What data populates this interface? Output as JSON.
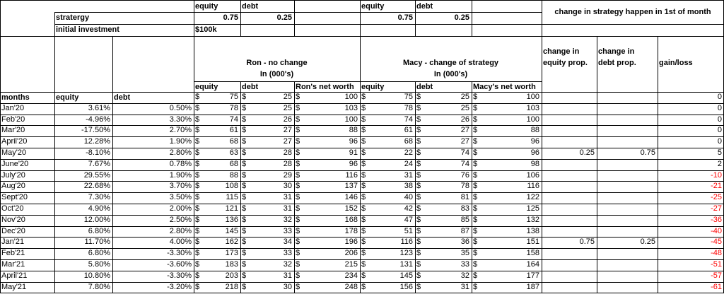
{
  "alloc_headers": {
    "ron_equity": "equity",
    "ron_debt": "debt",
    "macy_equity": "equity",
    "macy_debt": "debt"
  },
  "change_note": "change in strategy happen in 1st of month",
  "strategy": {
    "label": "stratergy",
    "ron_equity": "0.75",
    "ron_debt": "0.25",
    "macy_equity": "0.75",
    "macy_debt": "0.25"
  },
  "investment": {
    "label": "initial investment",
    "value": "$100k"
  },
  "groups": {
    "ron_title": "Ron - no change",
    "ron_sub": "In (000's)",
    "macy_title": "Macy - change of strategy",
    "macy_sub": "In (000's)",
    "change_equity_1": "change in",
    "change_equity_2": "equity prop.",
    "change_debt_1": "change in",
    "change_debt_2": "debt prop.",
    "gain_loss": "gain/loss"
  },
  "columns": {
    "months": "months",
    "equity": "equity",
    "debt": "debt",
    "ron_equity": "equity",
    "ron_debt": "debt",
    "ron_net": "Ron's net worth",
    "macy_equity": "equity",
    "macy_debt": "debt",
    "macy_net": "Macy's net worth"
  },
  "currency_symbol": "$",
  "rows": [
    {
      "month": "",
      "eq": "",
      "debt": "",
      "ron_eq": "75",
      "ron_debt": "25",
      "ron_net": "100",
      "macy_eq": "75",
      "macy_debt": "25",
      "macy_net": "100",
      "ch_eq": "",
      "ch_debt": "",
      "gain": "0"
    },
    {
      "month": "Jan'20",
      "eq": "3.61%",
      "debt": "0.50%",
      "ron_eq": "78",
      "ron_debt": "25",
      "ron_net": "103",
      "macy_eq": "78",
      "macy_debt": "25",
      "macy_net": "103",
      "ch_eq": "",
      "ch_debt": "",
      "gain": "0"
    },
    {
      "month": "Feb'20",
      "eq": "-4.96%",
      "debt": "3.30%",
      "ron_eq": "74",
      "ron_debt": "26",
      "ron_net": "100",
      "macy_eq": "74",
      "macy_debt": "26",
      "macy_net": "100",
      "ch_eq": "",
      "ch_debt": "",
      "gain": "0"
    },
    {
      "month": "Mar'20",
      "eq": "-17.50%",
      "debt": "2.70%",
      "ron_eq": "61",
      "ron_debt": "27",
      "ron_net": "88",
      "macy_eq": "61",
      "macy_debt": "27",
      "macy_net": "88",
      "ch_eq": "",
      "ch_debt": "",
      "gain": "0"
    },
    {
      "month": "April'20",
      "eq": "12.28%",
      "debt": "1.90%",
      "ron_eq": "68",
      "ron_debt": "27",
      "ron_net": "96",
      "macy_eq": "68",
      "macy_debt": "27",
      "macy_net": "96",
      "ch_eq": "",
      "ch_debt": "",
      "gain": "0"
    },
    {
      "month": "May'20",
      "eq": "-8.10%",
      "debt": "2.80%",
      "ron_eq": "63",
      "ron_debt": "28",
      "ron_net": "91",
      "macy_eq": "22",
      "macy_debt": "74",
      "macy_net": "96",
      "ch_eq": "0.25",
      "ch_debt": "0.75",
      "gain": "5"
    },
    {
      "month": "June'20",
      "eq": "7.67%",
      "debt": "0.78%",
      "ron_eq": "68",
      "ron_debt": "28",
      "ron_net": "96",
      "macy_eq": "24",
      "macy_debt": "74",
      "macy_net": "98",
      "ch_eq": "",
      "ch_debt": "",
      "gain": "2"
    },
    {
      "month": "July'20",
      "eq": "29.55%",
      "debt": "1.90%",
      "ron_eq": "88",
      "ron_debt": "29",
      "ron_net": "116",
      "macy_eq": "31",
      "macy_debt": "76",
      "macy_net": "106",
      "ch_eq": "",
      "ch_debt": "",
      "gain": "-10"
    },
    {
      "month": "Aug'20",
      "eq": "22.68%",
      "debt": "3.70%",
      "ron_eq": "108",
      "ron_debt": "30",
      "ron_net": "137",
      "macy_eq": "38",
      "macy_debt": "78",
      "macy_net": "116",
      "ch_eq": "",
      "ch_debt": "",
      "gain": "-21"
    },
    {
      "month": "Sept'20",
      "eq": "7.30%",
      "debt": "3.50%",
      "ron_eq": "115",
      "ron_debt": "31",
      "ron_net": "146",
      "macy_eq": "40",
      "macy_debt": "81",
      "macy_net": "122",
      "ch_eq": "",
      "ch_debt": "",
      "gain": "-25"
    },
    {
      "month": "Oct'20",
      "eq": "4.90%",
      "debt": "2.00%",
      "ron_eq": "121",
      "ron_debt": "31",
      "ron_net": "152",
      "macy_eq": "42",
      "macy_debt": "83",
      "macy_net": "125",
      "ch_eq": "",
      "ch_debt": "",
      "gain": "-27"
    },
    {
      "month": "Nov'20",
      "eq": "12.00%",
      "debt": "2.50%",
      "ron_eq": "136",
      "ron_debt": "32",
      "ron_net": "168",
      "macy_eq": "47",
      "macy_debt": "85",
      "macy_net": "132",
      "ch_eq": "",
      "ch_debt": "",
      "gain": "-36"
    },
    {
      "month": "Dec'20",
      "eq": "6.80%",
      "debt": "2.80%",
      "ron_eq": "145",
      "ron_debt": "33",
      "ron_net": "178",
      "macy_eq": "51",
      "macy_debt": "87",
      "macy_net": "138",
      "ch_eq": "",
      "ch_debt": "",
      "gain": "-40"
    },
    {
      "month": "Jan'21",
      "eq": "11.70%",
      "debt": "4.00%",
      "ron_eq": "162",
      "ron_debt": "34",
      "ron_net": "196",
      "macy_eq": "116",
      "macy_debt": "36",
      "macy_net": "151",
      "ch_eq": "0.75",
      "ch_debt": "0.25",
      "gain": "-45"
    },
    {
      "month": "Feb'21",
      "eq": "6.80%",
      "debt": "-3.30%",
      "ron_eq": "173",
      "ron_debt": "33",
      "ron_net": "206",
      "macy_eq": "123",
      "macy_debt": "35",
      "macy_net": "158",
      "ch_eq": "",
      "ch_debt": "",
      "gain": "-48"
    },
    {
      "month": "Mar'21",
      "eq": "5.80%",
      "debt": "-3.60%",
      "ron_eq": "183",
      "ron_debt": "32",
      "ron_net": "215",
      "macy_eq": "131",
      "macy_debt": "33",
      "macy_net": "164",
      "ch_eq": "",
      "ch_debt": "",
      "gain": "-51"
    },
    {
      "month": "April'21",
      "eq": "10.80%",
      "debt": "-3.30%",
      "ron_eq": "203",
      "ron_debt": "31",
      "ron_net": "234",
      "macy_eq": "145",
      "macy_debt": "32",
      "macy_net": "177",
      "ch_eq": "",
      "ch_debt": "",
      "gain": "-57"
    },
    {
      "month": "May'21",
      "eq": "7.80%",
      "debt": "-3.20%",
      "ron_eq": "218",
      "ron_debt": "30",
      "ron_net": "248",
      "macy_eq": "156",
      "macy_debt": "31",
      "macy_net": "187",
      "ch_eq": "",
      "ch_debt": "",
      "gain": "-61"
    }
  ]
}
